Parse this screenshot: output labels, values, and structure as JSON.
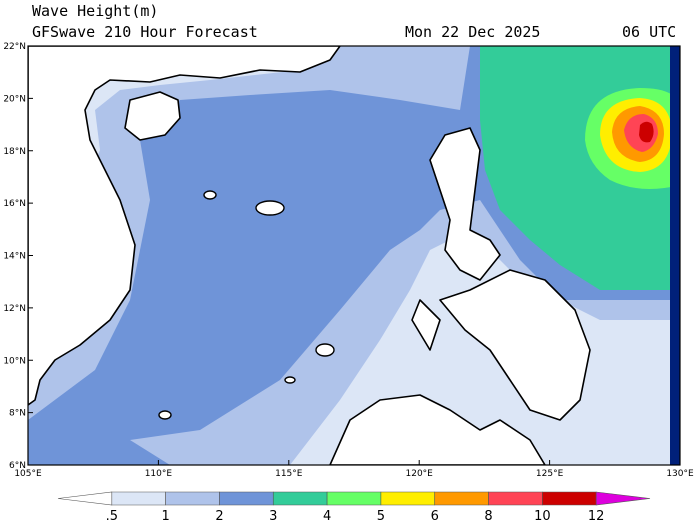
{
  "header": {
    "title": "Wave Height(m)",
    "subtitle": "GFSwave 210 Hour Forecast",
    "date": "Mon 22 Dec 2025",
    "time": "06 UTC"
  },
  "map": {
    "lat_labels": [
      "22°N",
      "20°N",
      "18°N",
      "16°N",
      "14°N",
      "12°N",
      "10°N",
      "8°N",
      "6°N"
    ],
    "lon_labels": [
      "105°E",
      "110°E",
      "115°E",
      "120°E",
      "125°E",
      "130°E"
    ]
  },
  "colorbar": {
    "labels": [
      ".5",
      "1",
      "2",
      "3",
      "4",
      "5",
      "6",
      "8",
      "10",
      "12"
    ],
    "colors": [
      "#ffffff",
      "#dce6f6",
      "#afc3ea",
      "#6f94d8",
      "#33cc99",
      "#66ff66",
      "#ffee00",
      "#ff9900",
      "#ff4455",
      "#cc0000",
      "#dd00dd"
    ]
  }
}
